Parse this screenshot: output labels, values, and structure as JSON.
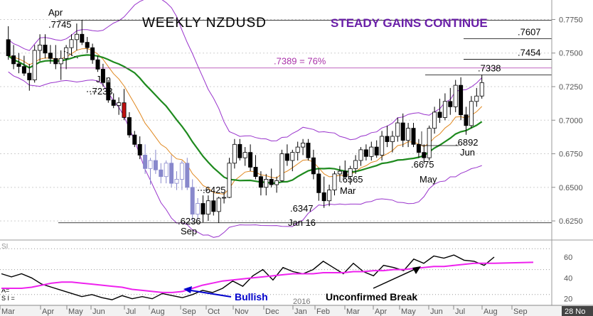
{
  "chart_data": [
    {
      "type": "candlestick",
      "title": "WEEKLY NZDUSD",
      "subtitle": "STEADY GAINS CONTINUE",
      "ylim": [
        0.615,
        0.78
      ],
      "y_ticks": [
        0.625,
        0.65,
        0.675,
        0.7,
        0.725,
        0.75,
        0.775
      ],
      "y_tick_labels": [
        "0.6250",
        "0.6500",
        "0.6750",
        "0.7000",
        "0.7250",
        "0.7500",
        "0.7750"
      ],
      "x_month_labels": [
        "Mar",
        "Apr",
        "May",
        "Jun",
        "Jul",
        "Aug",
        "Sep",
        "Oct",
        "Nov",
        "Dec",
        "Jan",
        "Feb",
        "Mar",
        "Apr",
        "May",
        "Jun",
        "Jul",
        "Aug",
        "Sep",
        "28 No"
      ],
      "year_label": "2016",
      "candles": [
        {
          "o": 0.76,
          "h": 0.77,
          "l": 0.745,
          "c": 0.748
        },
        {
          "o": 0.748,
          "h": 0.756,
          "l": 0.738,
          "c": 0.742
        },
        {
          "o": 0.742,
          "h": 0.75,
          "l": 0.735,
          "c": 0.74
        },
        {
          "o": 0.74,
          "h": 0.748,
          "l": 0.733,
          "c": 0.735
        },
        {
          "o": 0.735,
          "h": 0.742,
          "l": 0.722,
          "c": 0.73
        },
        {
          "o": 0.73,
          "h": 0.756,
          "l": 0.728,
          "c": 0.752
        },
        {
          "o": 0.752,
          "h": 0.764,
          "l": 0.744,
          "c": 0.756
        },
        {
          "o": 0.756,
          "h": 0.764,
          "l": 0.746,
          "c": 0.75
        },
        {
          "o": 0.75,
          "h": 0.756,
          "l": 0.742,
          "c": 0.746
        },
        {
          "o": 0.746,
          "h": 0.756,
          "l": 0.738,
          "c": 0.742
        },
        {
          "o": 0.742,
          "h": 0.752,
          "l": 0.73,
          "c": 0.746
        },
        {
          "o": 0.746,
          "h": 0.756,
          "l": 0.738,
          "c": 0.754
        },
        {
          "o": 0.754,
          "h": 0.764,
          "l": 0.748,
          "c": 0.76
        },
        {
          "o": 0.76,
          "h": 0.772,
          "l": 0.752,
          "c": 0.764
        },
        {
          "o": 0.764,
          "h": 0.7745,
          "l": 0.756,
          "c": 0.758
        },
        {
          "o": 0.758,
          "h": 0.762,
          "l": 0.75,
          "c": 0.754
        },
        {
          "o": 0.754,
          "h": 0.757,
          "l": 0.742,
          "c": 0.745
        },
        {
          "o": 0.745,
          "h": 0.748,
          "l": 0.736,
          "c": 0.738
        },
        {
          "o": 0.738,
          "h": 0.742,
          "l": 0.725,
          "c": 0.728
        },
        {
          "o": 0.728,
          "h": 0.73,
          "l": 0.713,
          "c": 0.715
        },
        {
          "o": 0.715,
          "h": 0.72,
          "l": 0.709,
          "c": 0.711
        },
        {
          "o": 0.711,
          "h": 0.717,
          "l": 0.704,
          "c": 0.713
        },
        {
          "o": 0.713,
          "h": 0.7233,
          "l": 0.7,
          "c": 0.702
        },
        {
          "o": 0.702,
          "h": 0.706,
          "l": 0.687,
          "c": 0.689
        },
        {
          "o": 0.689,
          "h": 0.692,
          "l": 0.68,
          "c": 0.682
        },
        {
          "o": 0.682,
          "h": 0.688,
          "l": 0.671,
          "c": 0.674
        },
        {
          "o": 0.674,
          "h": 0.682,
          "l": 0.66,
          "c": 0.664
        },
        {
          "o": 0.664,
          "h": 0.672,
          "l": 0.652,
          "c": 0.67
        },
        {
          "o": 0.67,
          "h": 0.678,
          "l": 0.66,
          "c": 0.663
        },
        {
          "o": 0.663,
          "h": 0.668,
          "l": 0.653,
          "c": 0.658
        },
        {
          "o": 0.658,
          "h": 0.67,
          "l": 0.653,
          "c": 0.668
        },
        {
          "o": 0.668,
          "h": 0.674,
          "l": 0.65,
          "c": 0.653
        },
        {
          "o": 0.653,
          "h": 0.662,
          "l": 0.648,
          "c": 0.656
        },
        {
          "o": 0.656,
          "h": 0.67,
          "l": 0.648,
          "c": 0.668
        },
        {
          "o": 0.668,
          "h": 0.672,
          "l": 0.648,
          "c": 0.65
        },
        {
          "o": 0.65,
          "h": 0.656,
          "l": 0.625,
          "c": 0.63
        },
        {
          "o": 0.63,
          "h": 0.642,
          "l": 0.626,
          "c": 0.638
        },
        {
          "o": 0.638,
          "h": 0.644,
          "l": 0.624,
          "c": 0.63
        },
        {
          "o": 0.63,
          "h": 0.644,
          "l": 0.625,
          "c": 0.64
        },
        {
          "o": 0.64,
          "h": 0.646,
          "l": 0.629,
          "c": 0.632
        },
        {
          "o": 0.632,
          "h": 0.643,
          "l": 0.6236,
          "c": 0.642
        },
        {
          "o": 0.642,
          "h": 0.646,
          "l": 0.638,
          "c": 0.6425
        },
        {
          "o": 0.6425,
          "h": 0.672,
          "l": 0.642,
          "c": 0.668
        },
        {
          "o": 0.668,
          "h": 0.686,
          "l": 0.664,
          "c": 0.682
        },
        {
          "o": 0.682,
          "h": 0.686,
          "l": 0.67,
          "c": 0.672
        },
        {
          "o": 0.672,
          "h": 0.68,
          "l": 0.666,
          "c": 0.676
        },
        {
          "o": 0.676,
          "h": 0.682,
          "l": 0.662,
          "c": 0.665
        },
        {
          "o": 0.665,
          "h": 0.674,
          "l": 0.656,
          "c": 0.658
        },
        {
          "o": 0.658,
          "h": 0.662,
          "l": 0.644,
          "c": 0.65
        },
        {
          "o": 0.65,
          "h": 0.66,
          "l": 0.644,
          "c": 0.656
        },
        {
          "o": 0.656,
          "h": 0.664,
          "l": 0.65,
          "c": 0.652
        },
        {
          "o": 0.652,
          "h": 0.658,
          "l": 0.646,
          "c": 0.655
        },
        {
          "o": 0.655,
          "h": 0.678,
          "l": 0.654,
          "c": 0.675
        },
        {
          "o": 0.675,
          "h": 0.682,
          "l": 0.666,
          "c": 0.67
        },
        {
          "o": 0.67,
          "h": 0.678,
          "l": 0.662,
          "c": 0.676
        },
        {
          "o": 0.676,
          "h": 0.684,
          "l": 0.67,
          "c": 0.68
        },
        {
          "o": 0.68,
          "h": 0.686,
          "l": 0.674,
          "c": 0.683
        },
        {
          "o": 0.683,
          "h": 0.686,
          "l": 0.67,
          "c": 0.672
        },
        {
          "o": 0.672,
          "h": 0.678,
          "l": 0.656,
          "c": 0.66
        },
        {
          "o": 0.66,
          "h": 0.664,
          "l": 0.64,
          "c": 0.646
        },
        {
          "o": 0.646,
          "h": 0.658,
          "l": 0.6347,
          "c": 0.64
        },
        {
          "o": 0.64,
          "h": 0.652,
          "l": 0.636,
          "c": 0.648
        },
        {
          "o": 0.648,
          "h": 0.662,
          "l": 0.644,
          "c": 0.66
        },
        {
          "o": 0.66,
          "h": 0.666,
          "l": 0.654,
          "c": 0.662
        },
        {
          "o": 0.662,
          "h": 0.67,
          "l": 0.6565,
          "c": 0.658
        },
        {
          "o": 0.658,
          "h": 0.666,
          "l": 0.652,
          "c": 0.664
        },
        {
          "o": 0.664,
          "h": 0.674,
          "l": 0.66,
          "c": 0.67
        },
        {
          "o": 0.67,
          "h": 0.68,
          "l": 0.666,
          "c": 0.678
        },
        {
          "o": 0.678,
          "h": 0.682,
          "l": 0.67,
          "c": 0.673
        },
        {
          "o": 0.673,
          "h": 0.684,
          "l": 0.67,
          "c": 0.68
        },
        {
          "o": 0.68,
          "h": 0.685,
          "l": 0.672,
          "c": 0.674
        },
        {
          "o": 0.674,
          "h": 0.692,
          "l": 0.67,
          "c": 0.688
        },
        {
          "o": 0.688,
          "h": 0.696,
          "l": 0.68,
          "c": 0.684
        },
        {
          "o": 0.684,
          "h": 0.692,
          "l": 0.676,
          "c": 0.688
        },
        {
          "o": 0.688,
          "h": 0.702,
          "l": 0.684,
          "c": 0.698
        },
        {
          "o": 0.698,
          "h": 0.705,
          "l": 0.68,
          "c": 0.685
        },
        {
          "o": 0.685,
          "h": 0.698,
          "l": 0.68,
          "c": 0.694
        },
        {
          "o": 0.694,
          "h": 0.698,
          "l": 0.68,
          "c": 0.682
        },
        {
          "o": 0.682,
          "h": 0.686,
          "l": 0.672,
          "c": 0.676
        },
        {
          "o": 0.676,
          "h": 0.682,
          "l": 0.6675,
          "c": 0.672
        },
        {
          "o": 0.672,
          "h": 0.696,
          "l": 0.67,
          "c": 0.694
        },
        {
          "o": 0.694,
          "h": 0.71,
          "l": 0.69,
          "c": 0.706
        },
        {
          "o": 0.706,
          "h": 0.716,
          "l": 0.698,
          "c": 0.702
        },
        {
          "o": 0.702,
          "h": 0.72,
          "l": 0.7,
          "c": 0.714
        },
        {
          "o": 0.714,
          "h": 0.724,
          "l": 0.704,
          "c": 0.71
        },
        {
          "o": 0.71,
          "h": 0.73,
          "l": 0.706,
          "c": 0.726
        },
        {
          "o": 0.726,
          "h": 0.732,
          "l": 0.7,
          "c": 0.704
        },
        {
          "o": 0.704,
          "h": 0.71,
          "l": 0.6892,
          "c": 0.696
        },
        {
          "o": 0.696,
          "h": 0.718,
          "l": 0.694,
          "c": 0.714
        },
        {
          "o": 0.714,
          "h": 0.724,
          "l": 0.71,
          "c": 0.718
        },
        {
          "o": 0.718,
          "h": 0.7338,
          "l": 0.716,
          "c": 0.728
        }
      ],
      "moving_averages": [
        {
          "name": "short",
          "color": "#e08820"
        },
        {
          "name": "long",
          "color": "#1e8a1e"
        }
      ],
      "band_color": "#9933cc",
      "horizontal_levels": [
        {
          "value": 0.7745,
          "label": ""
        },
        {
          "value": 0.7607,
          "label": ".7607"
        },
        {
          "value": 0.7454,
          "label": ".7454"
        },
        {
          "value": 0.7389,
          "label": ".7389 = 76%"
        },
        {
          "value": 0.7338,
          "label": ".7338"
        },
        {
          "value": 0.6236,
          "label": ""
        }
      ],
      "annotations": [
        {
          "text": "Apr",
          "bar": 12,
          "value": 0.78
        },
        {
          "text": ".7745",
          "bar": 13,
          "value": 0.7745
        },
        {
          "text": "Jun",
          "bar": 22,
          "value": 0.73
        },
        {
          "text": ".7233",
          "bar": 23,
          "value": 0.7233
        },
        {
          "text": ".6425",
          "bar": 43,
          "value": 0.6425
        },
        {
          "text": ".6236",
          "bar": 40,
          "value": 0.6236
        },
        {
          "text": "Sep",
          "bar": 40,
          "value": 0.6236
        },
        {
          "text": ".6347",
          "bar": 60,
          "value": 0.6347
        },
        {
          "text": "Jan 16",
          "bar": 60,
          "value": 0.6347
        },
        {
          "text": ".6565",
          "bar": 70,
          "value": 0.6565
        },
        {
          "text": "Mar",
          "bar": 70,
          "value": 0.6565
        },
        {
          "text": ".6675",
          "bar": 80,
          "value": 0.6675
        },
        {
          "text": "May",
          "bar": 80,
          "value": 0.6675
        },
        {
          "text": ".6892",
          "bar": 90,
          "value": 0.6892
        },
        {
          "text": "Jun",
          "bar": 90,
          "value": 0.6892
        }
      ]
    },
    {
      "type": "line",
      "indicator_label": "SI",
      "side_labels": [
        "A=",
        "S I ="
      ],
      "ylim": [
        15,
        75
      ],
      "y_ticks": [
        20,
        40,
        60
      ],
      "y_tick_labels": [
        "20",
        "40",
        "60"
      ],
      "reference_levels": [
        68,
        48,
        24
      ],
      "series": [
        {
          "name": "",
          "color": "#000000",
          "values": [
            44,
            41,
            44,
            40,
            34,
            31,
            28,
            25,
            22,
            24,
            21,
            19,
            23,
            20,
            22,
            20,
            25,
            23,
            21,
            24,
            28,
            26,
            30,
            37,
            32,
            42,
            48,
            38,
            50,
            46,
            44,
            48,
            56,
            50,
            44,
            54,
            46,
            42,
            52,
            50,
            47,
            58,
            54,
            61,
            59,
            62,
            57,
            56,
            52,
            60
          ]
        },
        {
          "name": "",
          "color": "#ee22ee",
          "values": [
            30,
            30,
            30,
            31,
            33,
            35,
            36,
            36,
            35,
            34,
            33,
            32,
            31,
            29,
            28,
            27,
            26,
            26,
            27,
            30,
            33,
            35,
            37,
            38,
            39,
            40,
            41,
            42,
            43,
            44,
            44,
            44,
            45,
            45,
            45,
            46,
            46,
            47,
            47,
            48,
            48,
            49,
            50,
            51,
            51,
            52,
            53,
            54,
            54,
            54
          ]
        }
      ],
      "annotations": [
        {
          "text": "Bullish",
          "color": "#0000cc"
        },
        {
          "text": "Unconfirmed Break",
          "color": "#000000"
        }
      ]
    }
  ]
}
